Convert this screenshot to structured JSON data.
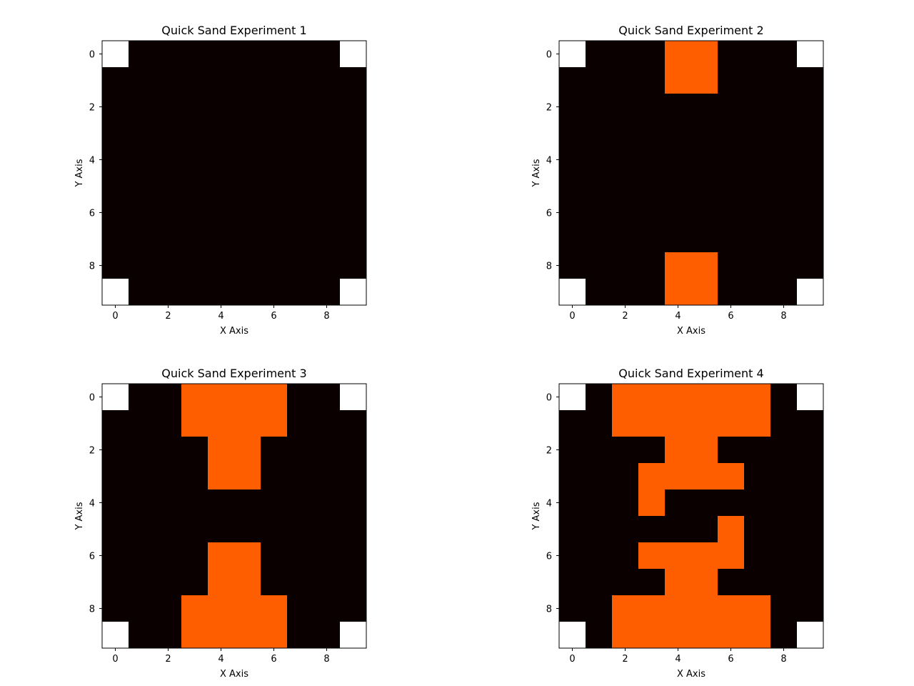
{
  "chart_data": [
    {
      "type": "heatmap",
      "title": "Quick Sand Experiment 1",
      "xlabel": "X Axis",
      "ylabel": "Y Axis",
      "xticks": [
        0,
        2,
        4,
        6,
        8
      ],
      "yticks": [
        0,
        2,
        4,
        6,
        8
      ],
      "grid": [
        [
          null,
          0,
          0,
          0,
          0,
          0,
          0,
          0,
          0,
          null
        ],
        [
          0,
          0,
          0,
          0,
          0,
          0,
          0,
          0,
          0,
          0
        ],
        [
          0,
          0,
          0,
          0,
          0,
          0,
          0,
          0,
          0,
          0
        ],
        [
          0,
          0,
          0,
          0,
          0,
          0,
          0,
          0,
          0,
          0
        ],
        [
          0,
          0,
          0,
          0,
          0,
          0,
          0,
          0,
          0,
          0
        ],
        [
          0,
          0,
          0,
          0,
          0,
          0,
          0,
          0,
          0,
          0
        ],
        [
          0,
          0,
          0,
          0,
          0,
          0,
          0,
          0,
          0,
          0
        ],
        [
          0,
          0,
          0,
          0,
          0,
          0,
          0,
          0,
          0,
          0
        ],
        [
          0,
          0,
          0,
          0,
          0,
          0,
          0,
          0,
          0,
          0
        ],
        [
          null,
          0,
          0,
          0,
          0,
          0,
          0,
          0,
          0,
          null
        ]
      ]
    },
    {
      "type": "heatmap",
      "title": "Quick Sand Experiment 2",
      "xlabel": "X Axis",
      "ylabel": "Y Axis",
      "xticks": [
        0,
        2,
        4,
        6,
        8
      ],
      "yticks": [
        0,
        2,
        4,
        6,
        8
      ],
      "grid": [
        [
          null,
          0,
          0,
          0,
          1,
          1,
          0,
          0,
          0,
          null
        ],
        [
          0,
          0,
          0,
          0,
          1,
          1,
          0,
          0,
          0,
          0
        ],
        [
          0,
          0,
          0,
          0,
          0,
          0,
          0,
          0,
          0,
          0
        ],
        [
          0,
          0,
          0,
          0,
          0,
          0,
          0,
          0,
          0,
          0
        ],
        [
          0,
          0,
          0,
          0,
          0,
          0,
          0,
          0,
          0,
          0
        ],
        [
          0,
          0,
          0,
          0,
          0,
          0,
          0,
          0,
          0,
          0
        ],
        [
          0,
          0,
          0,
          0,
          0,
          0,
          0,
          0,
          0,
          0
        ],
        [
          0,
          0,
          0,
          0,
          0,
          0,
          0,
          0,
          0,
          0
        ],
        [
          0,
          0,
          0,
          0,
          1,
          1,
          0,
          0,
          0,
          0
        ],
        [
          null,
          0,
          0,
          0,
          1,
          1,
          0,
          0,
          0,
          null
        ]
      ]
    },
    {
      "type": "heatmap",
      "title": "Quick Sand Experiment 3",
      "xlabel": "X Axis",
      "ylabel": "Y Axis",
      "xticks": [
        0,
        2,
        4,
        6,
        8
      ],
      "yticks": [
        0,
        2,
        4,
        6,
        8
      ],
      "grid": [
        [
          null,
          0,
          0,
          1,
          1,
          1,
          1,
          0,
          0,
          null
        ],
        [
          0,
          0,
          0,
          1,
          1,
          1,
          1,
          0,
          0,
          0
        ],
        [
          0,
          0,
          0,
          0,
          1,
          1,
          0,
          0,
          0,
          0
        ],
        [
          0,
          0,
          0,
          0,
          1,
          1,
          0,
          0,
          0,
          0
        ],
        [
          0,
          0,
          0,
          0,
          0,
          0,
          0,
          0,
          0,
          0
        ],
        [
          0,
          0,
          0,
          0,
          0,
          0,
          0,
          0,
          0,
          0
        ],
        [
          0,
          0,
          0,
          0,
          1,
          1,
          0,
          0,
          0,
          0
        ],
        [
          0,
          0,
          0,
          0,
          1,
          1,
          0,
          0,
          0,
          0
        ],
        [
          0,
          0,
          0,
          1,
          1,
          1,
          1,
          0,
          0,
          0
        ],
        [
          null,
          0,
          0,
          1,
          1,
          1,
          1,
          0,
          0,
          null
        ]
      ]
    },
    {
      "type": "heatmap",
      "title": "Quick Sand Experiment 4",
      "xlabel": "X Axis",
      "ylabel": "Y Axis",
      "xticks": [
        0,
        2,
        4,
        6,
        8
      ],
      "yticks": [
        0,
        2,
        4,
        6,
        8
      ],
      "grid": [
        [
          null,
          0,
          1,
          1,
          1,
          1,
          1,
          1,
          0,
          null
        ],
        [
          0,
          0,
          1,
          1,
          1,
          1,
          1,
          1,
          0,
          0
        ],
        [
          0,
          0,
          0,
          0,
          1,
          1,
          0,
          0,
          0,
          0
        ],
        [
          0,
          0,
          0,
          1,
          1,
          1,
          1,
          0,
          0,
          0
        ],
        [
          0,
          0,
          0,
          1,
          0,
          0,
          0,
          0,
          0,
          0
        ],
        [
          0,
          0,
          0,
          0,
          0,
          0,
          1,
          0,
          0,
          0
        ],
        [
          0,
          0,
          0,
          1,
          1,
          1,
          1,
          0,
          0,
          0
        ],
        [
          0,
          0,
          0,
          0,
          1,
          1,
          0,
          0,
          0,
          0
        ],
        [
          0,
          0,
          1,
          1,
          1,
          1,
          1,
          1,
          0,
          0
        ],
        [
          null,
          0,
          1,
          1,
          1,
          1,
          1,
          1,
          0,
          null
        ]
      ]
    }
  ],
  "colors": {
    "low": "#0b0000",
    "high": "#ff5e00",
    "masked": "#ffffff"
  }
}
